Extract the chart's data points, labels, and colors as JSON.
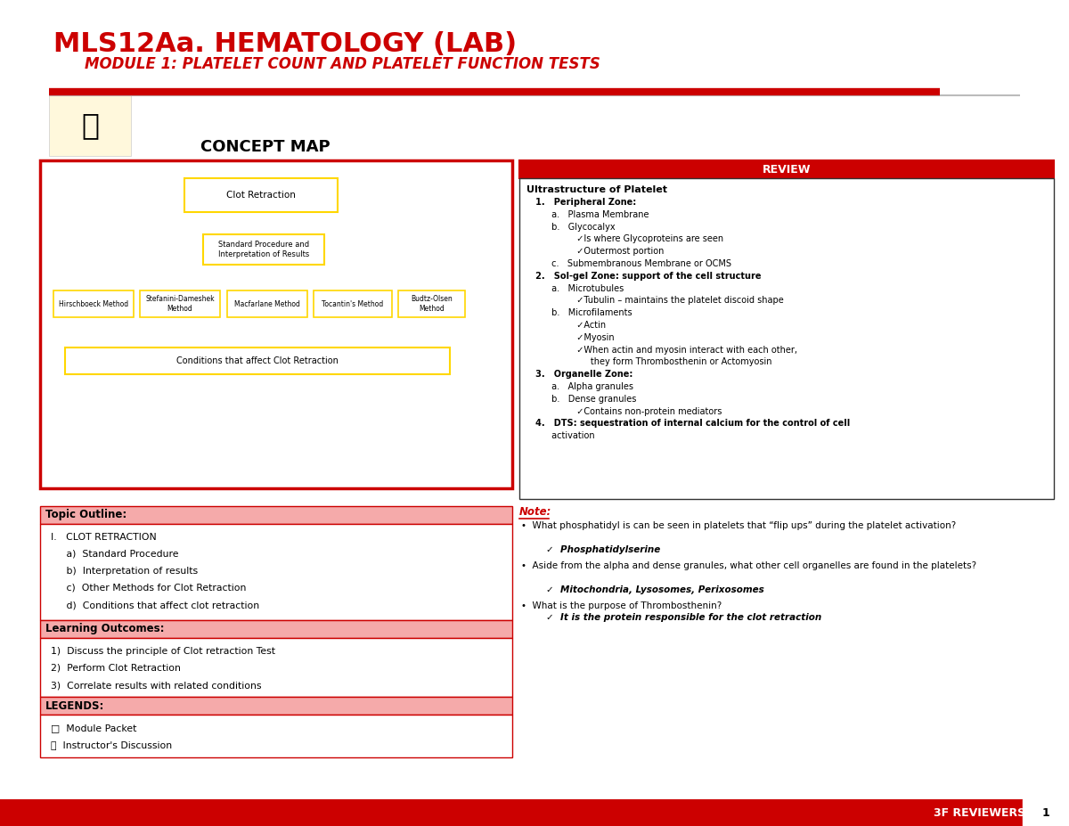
{
  "title1": "MLS12Aa. HEMATOLOGY (LAB)",
  "title2": "MODULE 1: PLATELET COUNT AND PLATELET FUNCTION TESTS",
  "title_color": "#CC0000",
  "header_line_color": "#CC0000",
  "bg_color": "#FFFFFF",
  "concept_map_title": "CONCEPT MAP",
  "concept_map_border_color": "#CC0000",
  "concept_box_color": "#FFD700",
  "concept_box_fill": "#FFFFFF",
  "concept_line_color": "#FFB347",
  "topic_outline_title": "Topic Outline:",
  "topic_outline_content": [
    "I.   CLOT RETRACTION",
    "     a)  Standard Procedure",
    "     b)  Interpretation of results",
    "     c)  Other Methods for Clot Retraction",
    "     d)  Conditions that affect clot retraction"
  ],
  "learning_outcomes_title": "Learning Outcomes:",
  "learning_outcomes_content": [
    "1)  Discuss the principle of Clot retraction Test",
    "2)  Perform Clot Retraction",
    "3)  Correlate results with related conditions"
  ],
  "legends_title": "LEGENDS:",
  "legends_content": [
    "□  Module Packet",
    "🔊  Instructor's Discussion"
  ],
  "review_title": "REVIEW",
  "note_title": "Note:",
  "note_bullets": [
    {
      "text": "What phosphatidyl is can be seen in platelets that “flip ups” during the platelet activation?",
      "answer": "✓  Phosphatidylserine"
    },
    {
      "text": "Aside from the alpha and dense granules, what other cell organelles are found in the platelets?",
      "answer": "✓  Mitochondria, Lysosomes, Perixosomes"
    },
    {
      "text": "What is the purpose of Thrombosthenin?",
      "answer": "✓  It is the protein responsible for the clot retraction"
    }
  ],
  "footer_text": "3F REVIEWERS",
  "footer_page": "1",
  "footer_bg": "#CC0000",
  "section_header_bg": "#F5AAAA",
  "section_border": "#CC0000",
  "review_lines": [
    {
      "txt": "   1.   Peripheral Zone:",
      "bold": true
    },
    {
      "txt": "         a.   Plasma Membrane",
      "bold": false
    },
    {
      "txt": "         b.   Glycocalyx",
      "bold": false
    },
    {
      "txt": "                  ✓Is where Glycoproteins are seen",
      "bold": false
    },
    {
      "txt": "                  ✓Outermost portion",
      "bold": false
    },
    {
      "txt": "         c.   Submembranous Membrane or OCMS",
      "bold": false
    },
    {
      "txt": "   2.   Sol-gel Zone: support of the cell structure",
      "bold": true
    },
    {
      "txt": "         a.   Microtubules",
      "bold": false
    },
    {
      "txt": "                  ✓Tubulin – maintains the platelet discoid shape",
      "bold": false
    },
    {
      "txt": "         b.   Microfilaments",
      "bold": false
    },
    {
      "txt": "                  ✓Actin",
      "bold": false
    },
    {
      "txt": "                  ✓Myosin",
      "bold": false
    },
    {
      "txt": "                  ✓When actin and myosin interact with each other,",
      "bold": false
    },
    {
      "txt": "                       they form Thrombosthenin or Actomyosin",
      "bold": false
    },
    {
      "txt": "   3.   Organelle Zone:",
      "bold": true
    },
    {
      "txt": "         a.   Alpha granules",
      "bold": false
    },
    {
      "txt": "         b.   Dense granules",
      "bold": false
    },
    {
      "txt": "                  ✓Contains non-protein mediators",
      "bold": false
    },
    {
      "txt": "   4.   DTS: sequestration of internal calcium for the control of cell",
      "bold": true
    },
    {
      "txt": "         activation",
      "bold": false
    }
  ]
}
